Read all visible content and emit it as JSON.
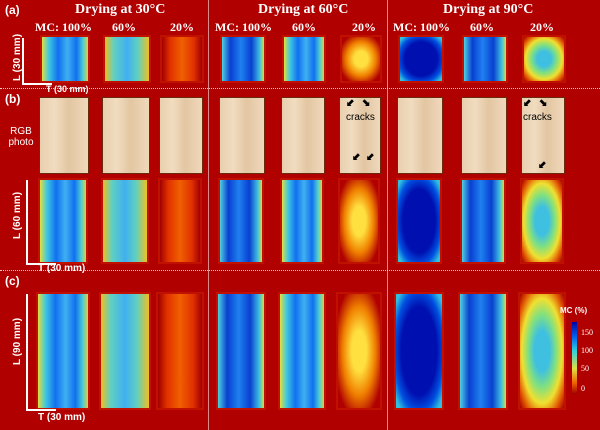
{
  "panels": {
    "a": "(a)",
    "b": "(b)",
    "c": "(c)"
  },
  "columns": [
    {
      "title": "Drying at 30°C",
      "mc": [
        "MC: 100%",
        "60%",
        "20%"
      ]
    },
    {
      "title": "Drying at 60°C",
      "mc": [
        "MC: 100%",
        "60%",
        "20%"
      ]
    },
    {
      "title": "Drying at 90°C",
      "mc": [
        "MC: 100%",
        "60%",
        "20%"
      ]
    }
  ],
  "axes": {
    "a": {
      "l": "L (30 mm)",
      "t": "T (30 mm)"
    },
    "b": {
      "l": "L (60 mm)",
      "t": "T (30 mm)"
    },
    "c": {
      "l": "L (90 mm)",
      "t": "T (30 mm)"
    }
  },
  "rgb_label": [
    "RGB",
    "photo"
  ],
  "cracks_label": "cracks",
  "colorbar": {
    "title": "MC (%)",
    "ticks": [
      "150",
      "100",
      "50",
      "0"
    ],
    "colors": [
      "#0000a0",
      "#30d0e0",
      "#e0e040",
      "#a00000"
    ]
  }
}
